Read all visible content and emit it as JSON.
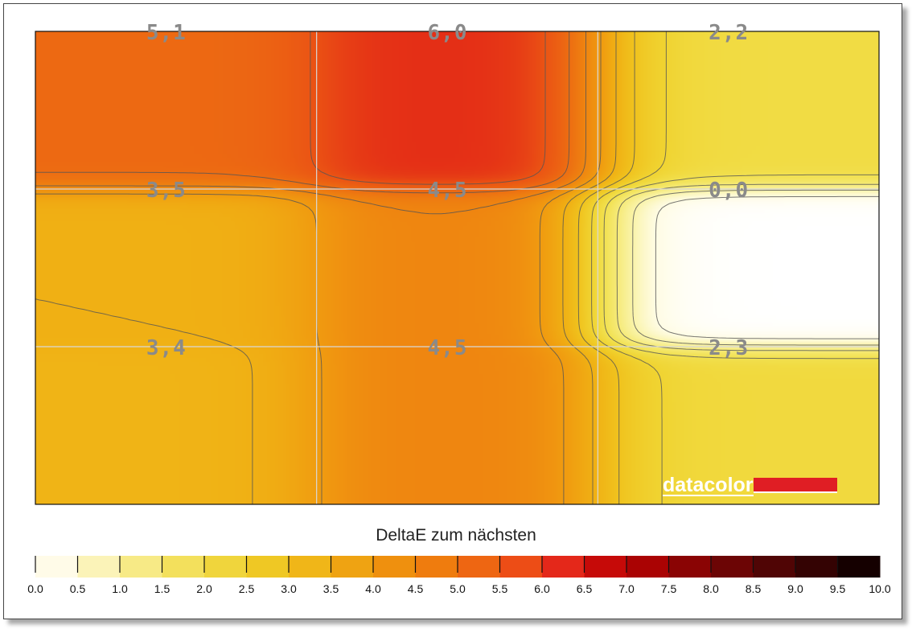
{
  "chart_data": {
    "type": "heatmap",
    "title": "",
    "rows": 3,
    "cols": 3,
    "values": [
      [
        5.1,
        6.0,
        2.2
      ],
      [
        3.5,
        4.5,
        0.0
      ],
      [
        3.4,
        4.5,
        2.3
      ]
    ],
    "cell_labels": [
      [
        "5,1",
        "6,0",
        "2,2"
      ],
      [
        "3,5",
        "4,5",
        "0,0"
      ],
      [
        "3,4",
        "4,5",
        "2,3"
      ]
    ],
    "grid": true,
    "contours": true,
    "colorbar": {
      "title": "DeltaE zum nächsten",
      "min": 0.0,
      "max": 10.0,
      "step": 0.5,
      "tick_labels": [
        "0.0",
        "0.5",
        "1.0",
        "1.5",
        "2.0",
        "2.5",
        "3.0",
        "3.5",
        "4.0",
        "4.5",
        "5.0",
        "5.5",
        "6.0",
        "6.5",
        "7.0",
        "7.5",
        "8.0",
        "8.5",
        "9.0",
        "9.5",
        "10.0"
      ],
      "colors": [
        "#fffbe8",
        "#fbf3b8",
        "#f7ea86",
        "#f3e05c",
        "#f0d53c",
        "#efc824",
        "#f0b618",
        "#efa312",
        "#ef900e",
        "#ef7c0e",
        "#ee6612",
        "#ed4d16",
        "#e4281a",
        "#c60a08",
        "#aa0303",
        "#8a0404",
        "#6c0505",
        "#500505",
        "#340303",
        "#150000"
      ]
    },
    "logo_text": "datacolor",
    "brand_color": "#e01e24"
  }
}
